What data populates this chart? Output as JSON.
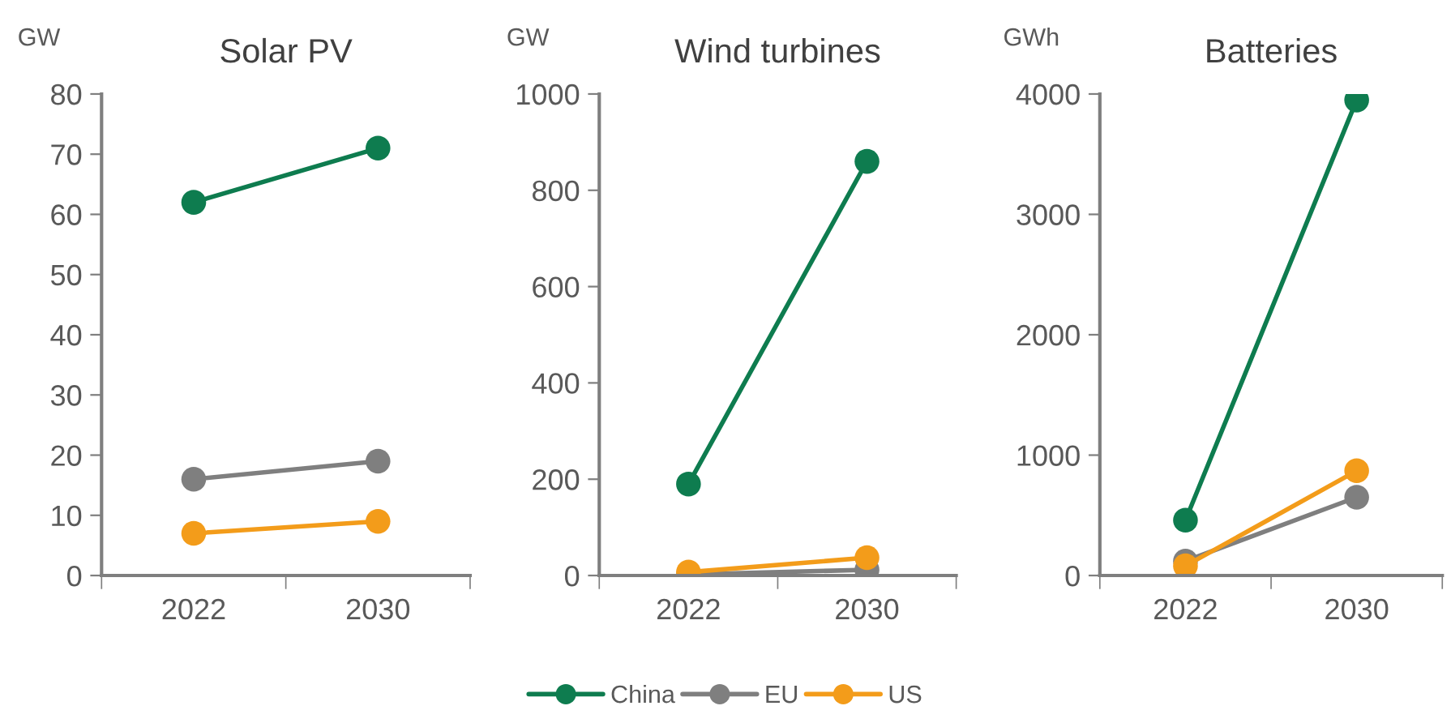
{
  "chart_data": [
    {
      "type": "line",
      "title": "Solar PV",
      "ylabel": "GW",
      "categories": [
        "2022",
        "2030"
      ],
      "ylim": [
        0,
        80
      ],
      "yticks": [
        0,
        10,
        20,
        30,
        40,
        50,
        60,
        70,
        80
      ],
      "marker": "circle",
      "line_style": "solid",
      "grid": false,
      "legend": "bottom",
      "series": [
        {
          "name": "China",
          "color": "#0e7c4f",
          "values": [
            62,
            71
          ]
        },
        {
          "name": "EU",
          "color": "#7f7f7f",
          "values": [
            16,
            19
          ]
        },
        {
          "name": "US",
          "color": "#f39c1a",
          "values": [
            7,
            9
          ]
        }
      ]
    },
    {
      "type": "line",
      "title": "Wind turbines",
      "ylabel": "GW",
      "categories": [
        "2022",
        "2030"
      ],
      "ylim": [
        0,
        1000
      ],
      "yticks": [
        0,
        200,
        400,
        600,
        800,
        1000
      ],
      "marker": "circle",
      "line_style": "solid",
      "grid": false,
      "series": [
        {
          "color": "#0e7c4f",
          "values": [
            190,
            860
          ]
        },
        {
          "color": "#7f7f7f",
          "values": [
            2,
            12
          ]
        },
        {
          "color": "#f39c1a",
          "values": [
            7,
            37
          ]
        }
      ]
    },
    {
      "type": "line",
      "title": "Batteries",
      "ylabel": "GWh",
      "categories": [
        "2022",
        "2030"
      ],
      "ylim": [
        0,
        4000
      ],
      "yticks": [
        0,
        1000,
        2000,
        3000,
        4000
      ],
      "marker": "circle",
      "line_style": "solid",
      "grid": false,
      "series": [
        {
          "color": "#0e7c4f",
          "values": [
            460,
            3950
          ]
        },
        {
          "color": "#7f7f7f",
          "values": [
            120,
            650
          ]
        },
        {
          "color": "#f39c1a",
          "values": [
            80,
            870
          ]
        }
      ]
    }
  ]
}
